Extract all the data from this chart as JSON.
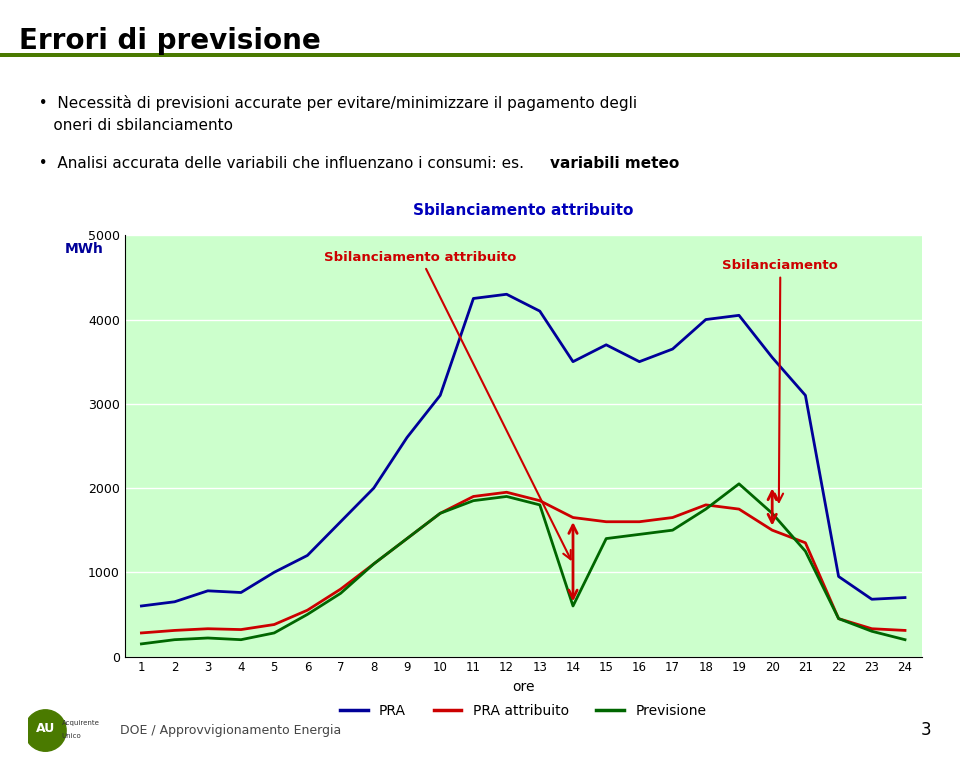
{
  "title_slide": "Errori di previsione",
  "title_color": "#000000",
  "green_line_color": "#4a7a00",
  "bullet1_line1": "  •  Necessità di previsioni accurate per evitare/minimizzare il pagamento degli",
  "bullet1_line2": "     oneri di sbilanciamento",
  "bullet2_prefix": "  •  Analisi accurata delle variabili che influenzano i consumi: es. ",
  "bullet2_bold": "variabili meteo",
  "chart_title": "Sbilanciamento attribuito",
  "chart_title_color": "#0000bb",
  "ylabel": "MWh",
  "xlabel": "ore",
  "bg_color": "#ccffcc",
  "ylim": [
    0,
    5000
  ],
  "yticks": [
    0,
    1000,
    2000,
    3000,
    4000,
    5000
  ],
  "xticks": [
    1,
    2,
    3,
    4,
    5,
    6,
    7,
    8,
    9,
    10,
    11,
    12,
    13,
    14,
    15,
    16,
    17,
    18,
    19,
    20,
    21,
    22,
    23,
    24
  ],
  "pra": [
    600,
    650,
    780,
    760,
    1000,
    1200,
    1600,
    2000,
    2600,
    3100,
    4250,
    4300,
    4100,
    3500,
    3700,
    3500,
    3650,
    4000,
    4050,
    3550,
    3100,
    950,
    680,
    700
  ],
  "pra_attribuito": [
    280,
    310,
    330,
    320,
    380,
    550,
    800,
    1100,
    1400,
    1700,
    1900,
    1950,
    1850,
    1650,
    1600,
    1600,
    1650,
    1800,
    1750,
    1500,
    1350,
    450,
    330,
    310
  ],
  "previsione": [
    150,
    200,
    220,
    200,
    280,
    500,
    750,
    1100,
    1400,
    1700,
    1850,
    1900,
    1800,
    600,
    1400,
    1450,
    1500,
    1750,
    2050,
    1700,
    1250,
    450,
    300,
    200
  ],
  "pra_color": "#000099",
  "pra_attribuito_color": "#cc0000",
  "previsione_color": "#006600",
  "arrow_color": "#cc0000",
  "annot_text_color": "#cc0000",
  "footer_text": "DOE / Approvvigionamento Energia",
  "page_number": "3"
}
